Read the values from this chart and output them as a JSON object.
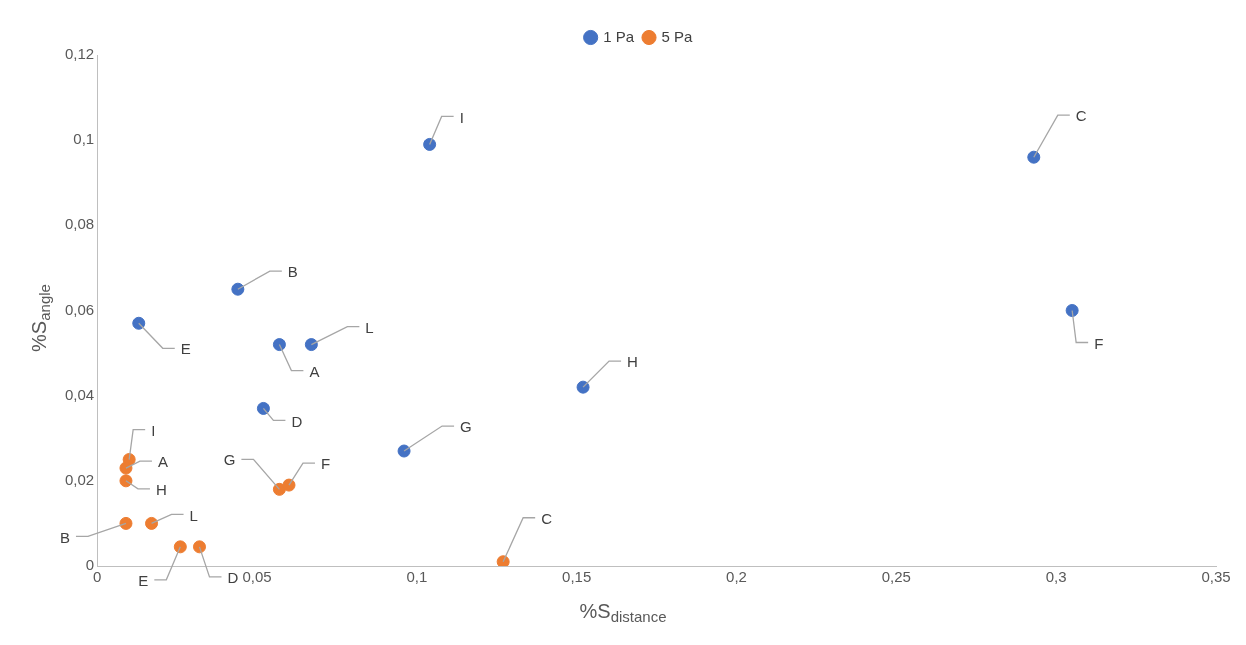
{
  "chart_data": {
    "type": "scatter",
    "xlabel": "%S$_{distance}$",
    "ylabel": "%S$_{angle}$",
    "xlim": [
      0,
      0.35
    ],
    "xticks": [
      0,
      {
        "value": 0.05,
        "label": "0,05"
      },
      {
        "value": 0.1,
        "label": "0,1"
      },
      {
        "value": 0.15,
        "label": "0,15"
      },
      {
        "value": 0.2,
        "label": "0,2"
      },
      {
        "value": 0.25,
        "label": "0,25"
      },
      {
        "value": 0.3,
        "label": "0,3"
      },
      {
        "value": 0.35,
        "label": "0,35"
      }
    ],
    "ylim": [
      0,
      0.12
    ],
    "yticks": [
      0,
      {
        "value": 0.02,
        "label": "0,02"
      },
      {
        "value": 0.04,
        "label": "0,04"
      },
      {
        "value": 0.06,
        "label": "0,06"
      },
      {
        "value": 0.08,
        "label": "0,08"
      },
      {
        "value": 0.1,
        "label": "0,1"
      },
      {
        "value": 0.12,
        "label": "0,12"
      }
    ],
    "grid": false,
    "legend": "top",
    "marker": "circle",
    "series": [
      {
        "name": "1 Pa",
        "color": "#4472c4",
        "x": [
          0.104,
          0.293,
          0.044,
          0.013,
          0.057,
          0.067,
          0.305,
          0.152,
          0.052,
          0.096
        ],
        "values": [
          0.099,
          0.096,
          0.065,
          0.057,
          0.052,
          0.052,
          0.06,
          0.042,
          0.037,
          0.027
        ]
      },
      {
        "name": "5 Pa",
        "color": "#ed7d31",
        "x": [
          0.01,
          0.009,
          0.009,
          0.009,
          0.017,
          0.026,
          0.032,
          0.057,
          0.06,
          0.127
        ],
        "values": [
          0.025,
          0.023,
          0.02,
          0.01,
          0.01,
          0.0045,
          0.0045,
          0.018,
          0.019,
          0.001
        ]
      }
    ],
    "annotations": [
      {
        "text": "I",
        "x": 0.104,
        "y": 0.099
      },
      {
        "text": "C",
        "x": 0.293,
        "y": 0.096
      },
      {
        "text": "B",
        "x": 0.044,
        "y": 0.065
      },
      {
        "text": "E",
        "x": 0.013,
        "y": 0.057
      },
      {
        "text": "A",
        "x": 0.057,
        "y": 0.052
      },
      {
        "text": "L",
        "x": 0.067,
        "y": 0.052
      },
      {
        "text": "F",
        "x": 0.305,
        "y": 0.06
      },
      {
        "text": "H",
        "x": 0.152,
        "y": 0.042
      },
      {
        "text": "D",
        "x": 0.052,
        "y": 0.037
      },
      {
        "text": "G",
        "x": 0.096,
        "y": 0.027
      },
      {
        "text": "I",
        "x": 0.01,
        "y": 0.025
      },
      {
        "text": "A",
        "x": 0.009,
        "y": 0.023
      },
      {
        "text": "H",
        "x": 0.009,
        "y": 0.02
      },
      {
        "text": "B",
        "x": 0.009,
        "y": 0.01
      },
      {
        "text": "L",
        "x": 0.017,
        "y": 0.01
      },
      {
        "text": "E",
        "x": 0.026,
        "y": 0.0045
      },
      {
        "text": "D",
        "x": 0.032,
        "y": 0.0045
      },
      {
        "text": "G",
        "x": 0.057,
        "y": 0.018
      },
      {
        "text": "F",
        "x": 0.06,
        "y": 0.019
      },
      {
        "text": "C",
        "x": 0.127,
        "y": 0.001
      }
    ]
  }
}
